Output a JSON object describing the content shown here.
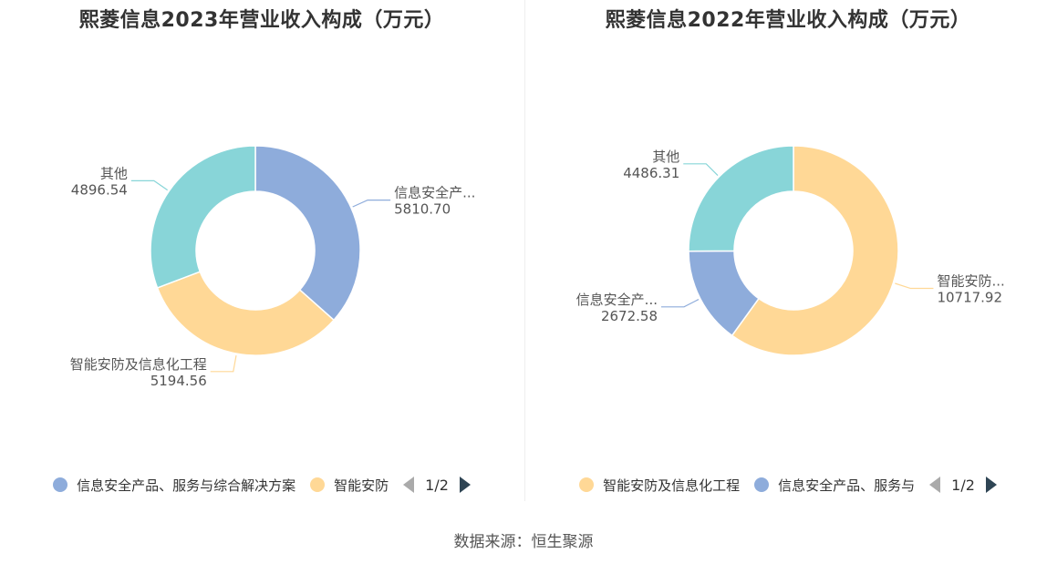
{
  "source_label": "数据来源：恒生聚源",
  "chart_data": [
    {
      "type": "pie",
      "title": "熙菱信息2023年营业收入构成（万元）",
      "slices": [
        {
          "name": "信息安全产品、服务与综合解决方案",
          "short_label": "信息安全产...",
          "value": 5810.7,
          "value_label": "5810.70",
          "color": "#8eacdb"
        },
        {
          "name": "智能安防及信息化工程",
          "short_label": "智能安防及信息化工程",
          "value": 5194.56,
          "value_label": "5194.56",
          "color": "#ffd896"
        },
        {
          "name": "其他",
          "short_label": "其他",
          "value": 4896.54,
          "value_label": "4896.54",
          "color": "#88d5d8"
        }
      ],
      "legend": {
        "items": [
          {
            "label": "信息安全产品、服务与综合解决方案",
            "color": "#8eacdb"
          },
          {
            "label": "智能安防",
            "color": "#ffd896"
          }
        ],
        "page": "1/2"
      }
    },
    {
      "type": "pie",
      "title": "熙菱信息2022年营业收入构成（万元）",
      "slices": [
        {
          "name": "智能安防及信息化工程",
          "short_label": "智能安防...",
          "value": 10717.92,
          "value_label": "10717.92",
          "color": "#ffd896"
        },
        {
          "name": "信息安全产品、服务与综合解决方案",
          "short_label": "信息安全产...",
          "value": 2672.58,
          "value_label": "2672.58",
          "color": "#8eacdb"
        },
        {
          "name": "其他",
          "short_label": "其他",
          "value": 4486.31,
          "value_label": "4486.31",
          "color": "#88d5d8"
        }
      ],
      "legend": {
        "items": [
          {
            "label": "智能安防及信息化工程",
            "color": "#ffd896"
          },
          {
            "label": "信息安全产品、服务与",
            "color": "#8eacdb"
          }
        ],
        "page": "1/2"
      }
    }
  ]
}
